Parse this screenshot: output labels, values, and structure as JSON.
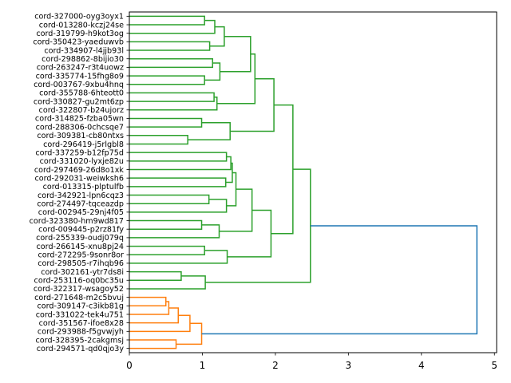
{
  "chart_data": {
    "type": "dendrogram",
    "orientation": "left",
    "title": "",
    "xlabel": "",
    "ylabel": "",
    "xlim": [
      0,
      5.03
    ],
    "x_ticks": [
      0,
      1,
      2,
      3,
      4,
      5
    ],
    "x_tick_labels": [
      "0",
      "1",
      "2",
      "3",
      "4",
      "5"
    ],
    "grid": false,
    "colors": {
      "cluster_a": "#2ca02c",
      "cluster_b": "#ff7f0e",
      "above_threshold": "#1f77b4",
      "axes": "#000000"
    },
    "leaves": [
      "cord-327000-oyg3oyx1",
      "cord-013280-kczj24se",
      "cord-319799-h9kot3og",
      "cord-350423-yaeduwvb",
      "cord-334907-l4jjb93l",
      "cord-298862-8bijio30",
      "cord-263247-r3t4uowz",
      "cord-335774-15fhg8o9",
      "cord-003767-9xbu4hnq",
      "cord-355788-6hteott0",
      "cord-330827-gu2mt6zp",
      "cord-322807-b24ujorz",
      "cord-314825-fzba05wn",
      "cord-288306-0chcsqe7",
      "cord-309381-cb80ntxs",
      "cord-296419-j5rlgbl8",
      "cord-337259-b12fp75d",
      "cord-331020-lyxje82u",
      "cord-297469-26d8o1xk",
      "cord-292031-weiwksh6",
      "cord-013315-plptulfb",
      "cord-342921-lpn6cqz3",
      "cord-274497-tqceazdp",
      "cord-002945-29nj4f05",
      "cord-323380-hm9wd817",
      "cord-009445-p2rz81fy",
      "cord-255339-oudj079q",
      "cord-266145-xnu8pj24",
      "cord-272295-9sonr8or",
      "cord-298505-r7ihqb96",
      "cord-302161-ytr7ds8i",
      "cord-253116-oq0bc35u",
      "cord-322317-wsagoy52",
      "cord-271648-m2c5bvuj",
      "cord-309147-c3ikb81g",
      "cord-331022-tek4u751",
      "cord-351567-ifoe8x28",
      "cord-293988-f5gvwjyh",
      "cord-328395-2cakgmsj",
      "cord-294571-qd0qjo3y"
    ],
    "merges": [
      {
        "id": "n0",
        "left": 0,
        "right": 1,
        "height": 1.03,
        "color": "cluster_a"
      },
      {
        "id": "n1",
        "left": "n0",
        "right": 2,
        "height": 1.17,
        "color": "cluster_a"
      },
      {
        "id": "n2",
        "left": 3,
        "right": 4,
        "height": 1.1,
        "color": "cluster_a"
      },
      {
        "id": "n3",
        "left": "n1",
        "right": "n2",
        "height": 1.3,
        "color": "cluster_a"
      },
      {
        "id": "n4",
        "left": 5,
        "right": 6,
        "height": 1.14,
        "color": "cluster_a"
      },
      {
        "id": "n5",
        "left": 7,
        "right": 8,
        "height": 1.03,
        "color": "cluster_a"
      },
      {
        "id": "n6",
        "left": "n4",
        "right": "n5",
        "height": 1.24,
        "color": "cluster_a"
      },
      {
        "id": "n7",
        "left": "n3",
        "right": "n6",
        "height": 1.66,
        "color": "cluster_a"
      },
      {
        "id": "n8",
        "left": 9,
        "right": 10,
        "height": 1.16,
        "color": "cluster_a"
      },
      {
        "id": "n9",
        "left": "n8",
        "right": 11,
        "height": 1.2,
        "color": "cluster_a"
      },
      {
        "id": "n10",
        "left": "n7",
        "right": "n9",
        "height": 1.72,
        "color": "cluster_a"
      },
      {
        "id": "n11",
        "left": 12,
        "right": 13,
        "height": 0.99,
        "color": "cluster_a"
      },
      {
        "id": "n12",
        "left": 14,
        "right": 15,
        "height": 0.8,
        "color": "cluster_a"
      },
      {
        "id": "n13",
        "left": "n11",
        "right": "n12",
        "height": 1.38,
        "color": "cluster_a"
      },
      {
        "id": "n14",
        "left": "n10",
        "right": "n13",
        "height": 1.98,
        "color": "cluster_a"
      },
      {
        "id": "n15",
        "left": 16,
        "right": 17,
        "height": 1.33,
        "color": "cluster_a"
      },
      {
        "id": "n16",
        "left": "n15",
        "right": 18,
        "height": 1.39,
        "color": "cluster_a"
      },
      {
        "id": "n17",
        "left": 19,
        "right": 20,
        "height": 1.32,
        "color": "cluster_a"
      },
      {
        "id": "n18",
        "left": "n16",
        "right": "n17",
        "height": 1.41,
        "color": "cluster_a"
      },
      {
        "id": "n19",
        "left": 21,
        "right": 22,
        "height": 1.09,
        "color": "cluster_a"
      },
      {
        "id": "n20",
        "left": "n19",
        "right": 23,
        "height": 1.33,
        "color": "cluster_a"
      },
      {
        "id": "n21",
        "left": "n18",
        "right": "n20",
        "height": 1.46,
        "color": "cluster_a"
      },
      {
        "id": "n22",
        "left": 24,
        "right": 25,
        "height": 0.99,
        "color": "cluster_a"
      },
      {
        "id": "n23",
        "left": "n22",
        "right": 26,
        "height": 1.23,
        "color": "cluster_a"
      },
      {
        "id": "n24",
        "left": "n21",
        "right": "n23",
        "height": 1.68,
        "color": "cluster_a"
      },
      {
        "id": "n25",
        "left": 27,
        "right": 28,
        "height": 1.03,
        "color": "cluster_a"
      },
      {
        "id": "n26",
        "left": "n25",
        "right": 29,
        "height": 1.34,
        "color": "cluster_a"
      },
      {
        "id": "n27",
        "left": "n24",
        "right": "n26",
        "height": 1.94,
        "color": "cluster_a"
      },
      {
        "id": "n28",
        "left": "n14",
        "right": "n27",
        "height": 2.24,
        "color": "cluster_a"
      },
      {
        "id": "n29",
        "left": 30,
        "right": 31,
        "height": 0.71,
        "color": "cluster_a"
      },
      {
        "id": "n30",
        "left": "n29",
        "right": 32,
        "height": 1.04,
        "color": "cluster_a"
      },
      {
        "id": "n31",
        "left": "n28",
        "right": "n30",
        "height": 2.48,
        "color": "cluster_a"
      },
      {
        "id": "n32",
        "left": 33,
        "right": 34,
        "height": 0.5,
        "color": "cluster_b"
      },
      {
        "id": "n33",
        "left": "n32",
        "right": 35,
        "height": 0.54,
        "color": "cluster_b"
      },
      {
        "id": "n34",
        "left": "n33",
        "right": 36,
        "height": 0.67,
        "color": "cluster_b"
      },
      {
        "id": "n35",
        "left": "n34",
        "right": 37,
        "height": 0.83,
        "color": "cluster_b"
      },
      {
        "id": "n36",
        "left": 38,
        "right": 39,
        "height": 0.64,
        "color": "cluster_b"
      },
      {
        "id": "n37",
        "left": "n35",
        "right": "n36",
        "height": 0.99,
        "color": "cluster_b"
      },
      {
        "id": "n38",
        "left": "n31",
        "right": "n37",
        "height": 4.76,
        "color": "above_threshold"
      }
    ]
  }
}
